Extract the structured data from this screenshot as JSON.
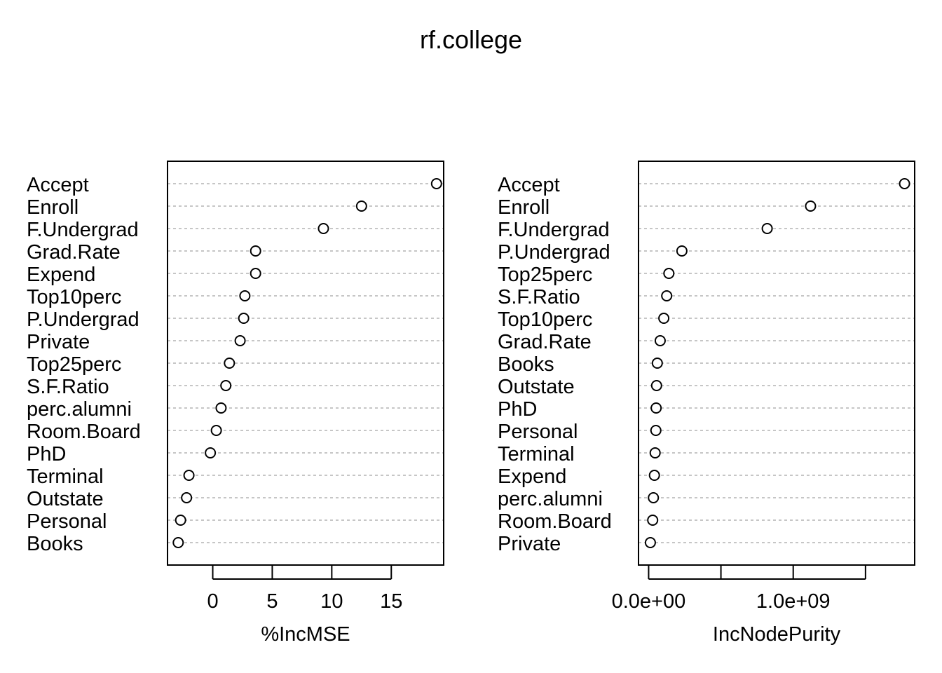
{
  "title": "rf.college",
  "chart_data": [
    {
      "type": "scatter",
      "subtype": "dotchart",
      "xlabel": "%IncMSE",
      "x_ticks": [
        0,
        5,
        10,
        15
      ],
      "x_tick_labels": [
        "0",
        "5",
        "10",
        "15"
      ],
      "xlim": [
        -3.8,
        19.4
      ],
      "grid": "dashed horizontal lines per variable",
      "categories": [
        "Accept",
        "Enroll",
        "F.Undergrad",
        "Grad.Rate",
        "Expend",
        "Top10perc",
        "P.Undergrad",
        "Private",
        "Top25perc",
        "S.F.Ratio",
        "perc.alumni",
        "Room.Board",
        "PhD",
        "Terminal",
        "Outstate",
        "Personal",
        "Books"
      ],
      "values": [
        18.8,
        12.5,
        9.3,
        3.6,
        3.6,
        2.7,
        2.6,
        2.3,
        1.4,
        1.1,
        0.7,
        0.3,
        -0.2,
        -2.0,
        -2.2,
        -2.7,
        -2.9
      ]
    },
    {
      "type": "scatter",
      "subtype": "dotchart",
      "xlabel": "IncNodePurity",
      "x_ticks": [
        0,
        500000000,
        1000000000,
        1500000000
      ],
      "x_tick_labels": [
        "0.0e+00",
        "",
        "1.0e+09",
        ""
      ],
      "xlim": [
        -70000000,
        1840000000
      ],
      "grid": "dashed horizontal lines per variable",
      "categories": [
        "Accept",
        "Enroll",
        "F.Undergrad",
        "P.Undergrad",
        "Top25perc",
        "S.F.Ratio",
        "Top10perc",
        "Grad.Rate",
        "Books",
        "Outstate",
        "PhD",
        "Personal",
        "Terminal",
        "Expend",
        "perc.alumni",
        "Room.Board",
        "Private"
      ],
      "values": [
        1770000000,
        1120000000,
        820000000,
        230000000,
        140000000,
        125000000,
        105000000,
        80000000,
        60000000,
        55000000,
        52000000,
        50000000,
        45000000,
        40000000,
        33000000,
        28000000,
        12000000
      ]
    }
  ]
}
